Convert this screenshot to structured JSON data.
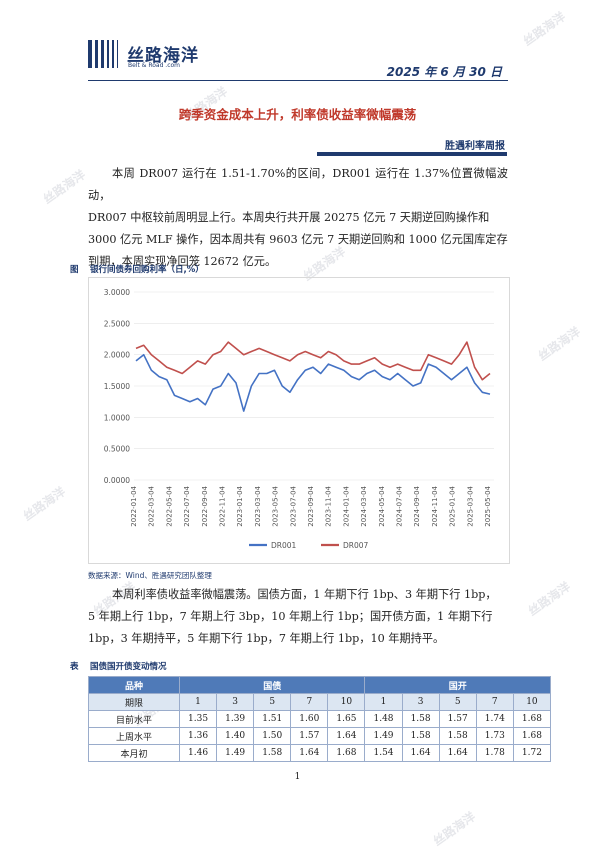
{
  "header": {
    "logo_cn": "丝路海洋",
    "logo_en": "Belt & Road .com",
    "date": "2025 年 6 月 30 日"
  },
  "title": "跨季资金成本上升，利率债收益率微幅震荡",
  "section": "胜遇利率周报",
  "paragraphs": [
    "本周 DR007 运行在 1.51-1.70%的区间，DR001 运行在 1.37%位置微幅波动，",
    "DR007 中枢较前周明显上行。本周央行共开展 20275 亿元 7 天期逆回购操作和",
    "3000 亿元 MLF 操作，因本周共有 9603 亿元 7 天期逆回购和 1000 亿元国库定存",
    "到期，本周实现净回笼 12672 亿元。"
  ],
  "figure": {
    "label": "图",
    "caption": "银行间债券回购利率（日,%）",
    "source": "数据来源：Wind、胜遇研究团队整理"
  },
  "chart_data": {
    "type": "line",
    "ylim": [
      0,
      3
    ],
    "yticks": [
      "3.0000",
      "2.5000",
      "2.0000",
      "1.5000",
      "1.0000",
      "0.5000",
      "0.0000"
    ],
    "xticks": [
      "2022-01-04",
      "2022-03-04",
      "2022-05-04",
      "2022-07-04",
      "2022-09-04",
      "2022-11-04",
      "2023-01-04",
      "2023-03-04",
      "2023-05-04",
      "2023-07-04",
      "2023-09-04",
      "2023-11-04",
      "2024-01-04",
      "2024-03-04",
      "2024-05-04",
      "2024-07-04",
      "2024-09-04",
      "2024-11-04",
      "2025-01-04",
      "2025-03-04",
      "2025-05-04"
    ],
    "series": [
      {
        "name": "DR001",
        "color": "#4472c4",
        "values": [
          1.9,
          2.0,
          1.75,
          1.65,
          1.6,
          1.35,
          1.3,
          1.25,
          1.3,
          1.2,
          1.45,
          1.5,
          1.7,
          1.55,
          1.1,
          1.5,
          1.7,
          1.7,
          1.75,
          1.5,
          1.4,
          1.6,
          1.75,
          1.8,
          1.7,
          1.85,
          1.8,
          1.75,
          1.65,
          1.6,
          1.7,
          1.75,
          1.65,
          1.6,
          1.7,
          1.6,
          1.5,
          1.55,
          1.85,
          1.8,
          1.7,
          1.6,
          1.7,
          1.8,
          1.55,
          1.4,
          1.37
        ]
      },
      {
        "name": "DR007",
        "color": "#c0504d",
        "values": [
          2.1,
          2.15,
          2.0,
          1.9,
          1.8,
          1.75,
          1.7,
          1.8,
          1.9,
          1.85,
          2.0,
          2.05,
          2.2,
          2.1,
          2.0,
          2.05,
          2.1,
          2.05,
          2.0,
          1.95,
          1.9,
          2.0,
          2.05,
          2.0,
          1.95,
          2.05,
          2.0,
          1.9,
          1.85,
          1.85,
          1.9,
          1.95,
          1.85,
          1.8,
          1.85,
          1.8,
          1.75,
          1.75,
          2.0,
          1.95,
          1.9,
          1.85,
          2.0,
          2.2,
          1.8,
          1.6,
          1.7
        ]
      }
    ]
  },
  "paragraphs2": [
    "本周利率债收益率微幅震荡。国债方面，1 年期下行 1bp、3 年期下行 1bp，",
    "5 年期上行 1bp，7 年期上行 3bp，10 年期上行 1bp；国开债方面，1 年期下行",
    "1bp，3 年期持平，5 年期下行 1bp，7 年期上行 1bp，10 年期持平。"
  ],
  "table": {
    "label": "表",
    "caption": "国债国开债变动情况",
    "header": [
      "品种",
      "国债",
      "国开"
    ],
    "terms_label": "期限",
    "terms": [
      "1",
      "3",
      "5",
      "7",
      "10",
      "1",
      "3",
      "5",
      "7",
      "10"
    ],
    "rows": [
      {
        "label": "目前水平",
        "values": [
          "1.35",
          "1.39",
          "1.51",
          "1.60",
          "1.65",
          "1.48",
          "1.58",
          "1.57",
          "1.74",
          "1.68"
        ]
      },
      {
        "label": "上周水平",
        "values": [
          "1.36",
          "1.40",
          "1.50",
          "1.57",
          "1.64",
          "1.49",
          "1.58",
          "1.58",
          "1.73",
          "1.68"
        ]
      },
      {
        "label": "本月初",
        "values": [
          "1.46",
          "1.49",
          "1.58",
          "1.64",
          "1.68",
          "1.54",
          "1.64",
          "1.64",
          "1.78",
          "1.72"
        ]
      }
    ]
  },
  "page_number": "1",
  "watermark": "丝路海洋"
}
